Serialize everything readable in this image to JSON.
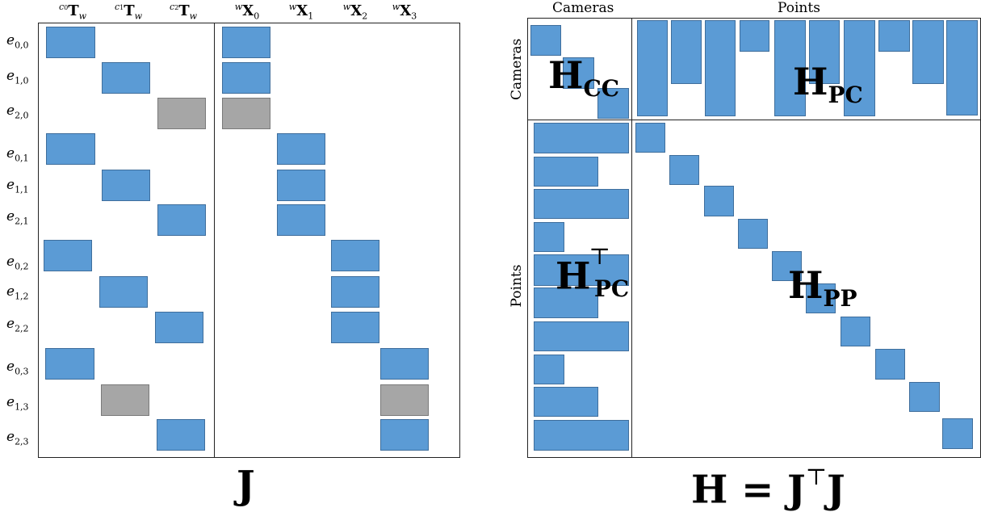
{
  "left": {
    "columns": [
      {
        "pre": "c",
        "pre_sub": "0",
        "main": "T",
        "sub": "w"
      },
      {
        "pre": "c",
        "pre_sub": "1",
        "main": "T",
        "sub": "w"
      },
      {
        "pre": "c",
        "pre_sub": "2",
        "main": "T",
        "sub": "w"
      },
      {
        "pre": "w",
        "pre_sub": "",
        "main": "X",
        "sub": "0"
      },
      {
        "pre": "w",
        "pre_sub": "",
        "main": "X",
        "sub": "1"
      },
      {
        "pre": "w",
        "pre_sub": "",
        "main": "X",
        "sub": "2"
      },
      {
        "pre": "w",
        "pre_sub": "",
        "main": "X",
        "sub": "3"
      }
    ],
    "rows": [
      {
        "base": "e",
        "sub": "0,0"
      },
      {
        "base": "e",
        "sub": "1,0"
      },
      {
        "base": "e",
        "sub": "2,0"
      },
      {
        "base": "e",
        "sub": "0,1"
      },
      {
        "base": "e",
        "sub": "1,1"
      },
      {
        "base": "e",
        "sub": "2,1"
      },
      {
        "base": "e",
        "sub": "0,2"
      },
      {
        "base": "e",
        "sub": "1,2"
      },
      {
        "base": "e",
        "sub": "2,2"
      },
      {
        "base": "e",
        "sub": "0,3"
      },
      {
        "base": "e",
        "sub": "1,3"
      },
      {
        "base": "e",
        "sub": "2,3"
      }
    ],
    "title": "J",
    "colors": {
      "observed": "#5b9bd5",
      "missing": "#a6a6a6"
    }
  },
  "right": {
    "top_labels": {
      "cameras": "Cameras",
      "points": "Points"
    },
    "side_labels": {
      "cameras": "Cameras",
      "points": "Points"
    },
    "blocks": {
      "hcc": {
        "main": "H",
        "sub": "CC"
      },
      "hpc": {
        "main": "H",
        "sub": "PC"
      },
      "hpct": {
        "main": "H",
        "sub": "PC",
        "sup": "⊤"
      },
      "hpp": {
        "main": "H",
        "sub": "PP"
      }
    },
    "title": {
      "lhs": "H = J",
      "sup": "⊤",
      "rhs": "J"
    }
  }
}
